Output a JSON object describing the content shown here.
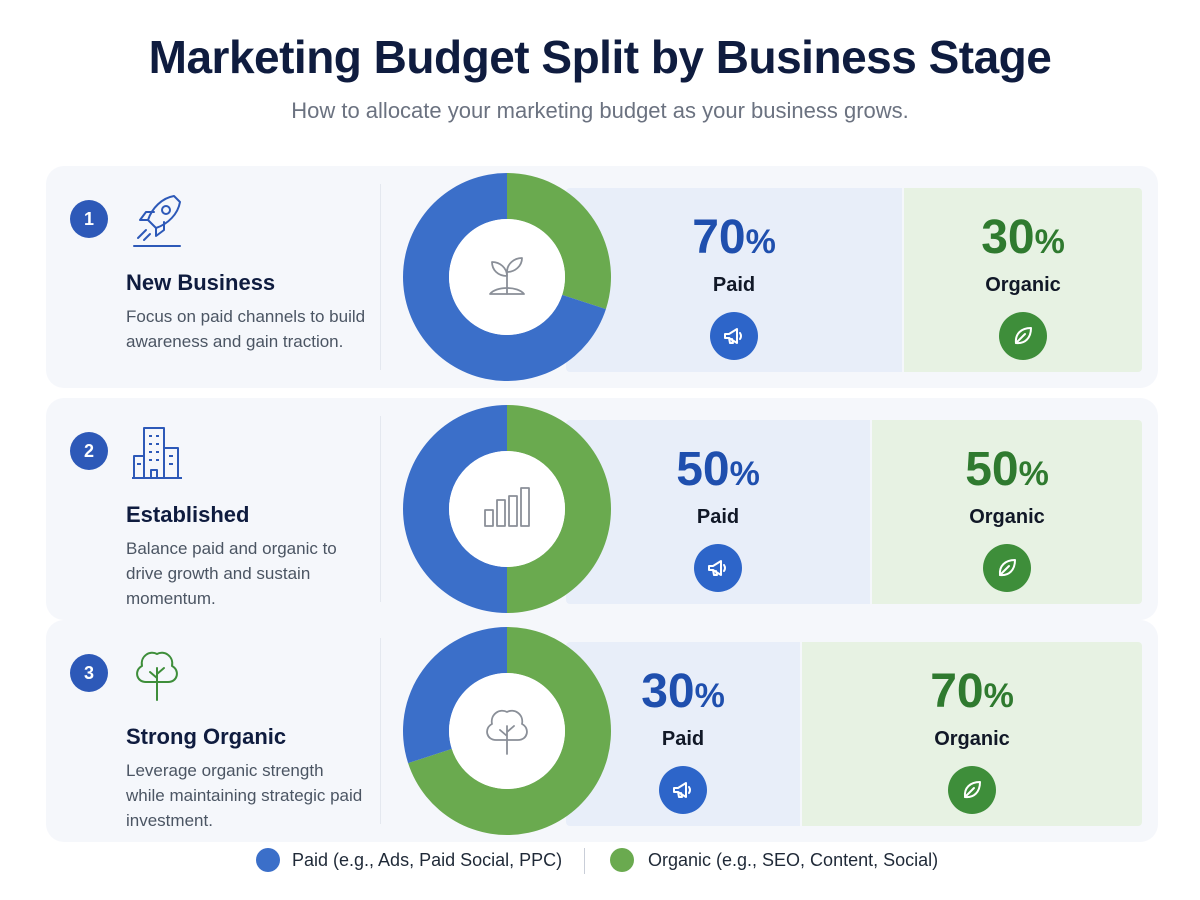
{
  "title": "Marketing Budget Split by Business Stage",
  "subtitle": "How to allocate your marketing budget as your business grows.",
  "colors": {
    "paid": "#3b6fc9",
    "organic": "#6aaa4f",
    "paid_text": "#1f4fae",
    "organic_text": "#2f7a2f"
  },
  "chart_data": {
    "type": "pie",
    "title": "Marketing Budget Split by Business Stage",
    "series": [
      {
        "stage": "New Business",
        "number": "1",
        "paid": 70,
        "organic": 30,
        "center_icon": "sprout-icon"
      },
      {
        "stage": "Established",
        "number": "2",
        "paid": 50,
        "organic": 50,
        "center_icon": "bar-chart-icon"
      },
      {
        "stage": "Strong Organic",
        "number": "3",
        "paid": 30,
        "organic": 70,
        "center_icon": "tree-icon"
      }
    ],
    "legend": [
      {
        "label": "Paid (e.g., Ads, Paid Social, PPC)",
        "color": "#3b6fc9"
      },
      {
        "label": "Organic (e.g., SEO, Content, Social)",
        "color": "#6aaa4f"
      }
    ],
    "legend_position": "bottom-center"
  },
  "rows": [
    {
      "number": "1",
      "icon": "rocket-icon",
      "name": "New Business",
      "desc": "Focus on paid channels to build awareness and gain traction.",
      "paid_value": "70",
      "organic_value": "30",
      "percent": "%",
      "paid_label": "Paid",
      "organic_label": "Organic",
      "paid_icon": "megaphone-icon",
      "organic_icon": "leaf-icon"
    },
    {
      "number": "2",
      "icon": "building-icon",
      "name": "Established",
      "desc": "Balance paid and organic to drive growth and sustain momentum.",
      "paid_value": "50",
      "organic_value": "50",
      "percent": "%",
      "paid_label": "Paid",
      "organic_label": "Organic",
      "paid_icon": "megaphone-icon",
      "organic_icon": "leaf-icon"
    },
    {
      "number": "3",
      "icon": "tree-icon",
      "name": "Strong Organic",
      "desc": "Leverage organic strength while maintaining strategic paid investment.",
      "paid_value": "30",
      "organic_value": "70",
      "percent": "%",
      "paid_label": "Paid",
      "organic_label": "Organic",
      "paid_icon": "megaphone-icon",
      "organic_icon": "leaf-icon"
    }
  ],
  "legend": {
    "paid_label": "Paid (e.g., Ads, Paid Social, PPC)",
    "organic_label": "Organic (e.g., SEO, Content, Social)"
  }
}
